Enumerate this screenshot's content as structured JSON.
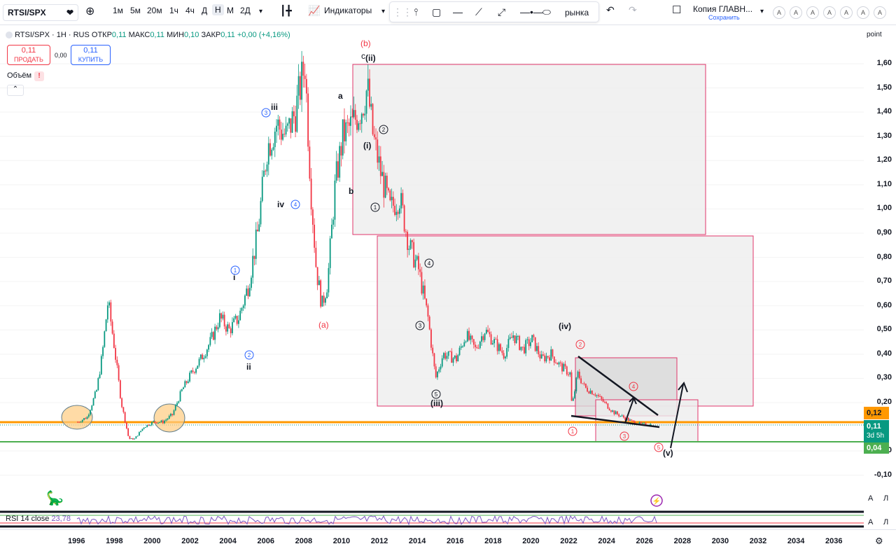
{
  "header": {
    "symbol": "RTSI/SPX",
    "intervals": [
      "1м",
      "5м",
      "20м",
      "1ч",
      "4ч",
      "Д",
      "Н",
      "М",
      "2Д"
    ],
    "active_interval": "Н",
    "indicators_label": "Индикаторы",
    "market_label": "рынка",
    "layout_name": "Копия ГЛАВН...",
    "layout_status": "Сохранить",
    "letters": [
      "A",
      "A",
      "A",
      "A",
      "A",
      "A",
      "A"
    ]
  },
  "legend": {
    "title": "RTSI/SPX · 1Н · RUS",
    "open_label": "ОТКР",
    "open_value": "0,11",
    "high_label": "МАКС",
    "high_value": "0,11",
    "low_label": "МИН",
    "low_value": "0,10",
    "close_label": "ЗАКР",
    "close_value": "0,11",
    "change": "+0,00 (+4,16%)"
  },
  "trade": {
    "sell_price": "0,11",
    "sell_label": "ПРОДАТЬ",
    "spread": "0,00",
    "buy_price": "0,11",
    "buy_label": "КУПИТЬ"
  },
  "volume_label": "Объём",
  "price_scale": {
    "mode_label": "point",
    "labels": [
      "1,60",
      "1,50",
      "1,40",
      "1,30",
      "1,20",
      "1,10",
      "1,00",
      "0,90",
      "0,80",
      "0,70",
      "0,60",
      "0,50",
      "0,40",
      "0,30",
      "0,20",
      "0,00",
      "-0,10"
    ],
    "tag_orange": "0,12",
    "tag_price": "0,11",
    "tag_countdown": "3d 5h",
    "tag_green": "0,04"
  },
  "rsi": {
    "label": "RSI 14 close",
    "value": "23,78"
  },
  "time_axis": {
    "years": [
      "1996",
      "1998",
      "2000",
      "2002",
      "2004",
      "2006",
      "2008",
      "2010",
      "2012",
      "2014",
      "2016",
      "2018",
      "2020",
      "2022",
      "2024",
      "2026",
      "2028",
      "2030",
      "2032",
      "2034",
      "2036"
    ]
  },
  "wave_labels": {
    "b_red": "(b)",
    "c": "c",
    "ii_top": "(ii)",
    "a": "a",
    "b": "b",
    "iii": "iii",
    "iv": "iv",
    "i": "i",
    "ii": "ii",
    "a_red": "(a)",
    "i_paren": "(i)",
    "iii_paren": "(iii)",
    "iv_paren": "(iv)",
    "v_paren": "(v)",
    "c1": "1",
    "c2": "2",
    "c3": "3",
    "c4": "4",
    "c5": "5"
  },
  "colors": {
    "up": "#089981",
    "down": "#f23645",
    "box_border": "#e0366b",
    "orange": "#ff9800",
    "green": "#4caf50",
    "rsi": "#7e57c2"
  },
  "chart_data": {
    "type": "candlestick",
    "title": "RTSI/SPX · 1Н · RUS",
    "xlabel": "",
    "ylabel": "",
    "ylim": [
      -0.14,
      1.68
    ],
    "xlim": [
      1994.7,
      2037
    ],
    "horizontal_levels": [
      0.118,
      0.04
    ],
    "series": [
      {
        "x": [
          1996.0,
          1996.5,
          1997.0,
          1997.3,
          1997.6,
          1997.9,
          1998.3,
          1998.7,
          1999.0,
          1999.5,
          2000.0,
          2000.5,
          2001.0,
          2001.5,
          2002.0,
          2002.5,
          2003.0,
          2003.5,
          2004.0,
          2004.5,
          2005.0,
          2005.5,
          2006.0,
          2006.5,
          2007.0,
          2007.5,
          2008.0,
          2008.3,
          2008.6,
          2008.9,
          2009.2,
          2009.6,
          2010.0,
          2010.5,
          2011.0,
          2011.3,
          2011.6,
          2012.0,
          2012.5,
          2013.0,
          2013.5,
          2014.0,
          2014.5,
          2014.9,
          2015.3,
          2016.0,
          2016.5,
          2017.0,
          2017.5,
          2018.0,
          2018.5,
          2019.0,
          2019.5,
          2020.0,
          2020.5,
          2021.0,
          2021.5,
          2022.0,
          2022.1,
          2022.4,
          2022.8,
          2023.3,
          2023.8,
          2024.3,
          2024.8,
          2025.3,
          2025.8,
          2026.3
        ],
        "values": [
          0.12,
          0.14,
          0.25,
          0.4,
          0.62,
          0.45,
          0.2,
          0.05,
          0.05,
          0.1,
          0.12,
          0.12,
          0.15,
          0.25,
          0.32,
          0.38,
          0.45,
          0.55,
          0.5,
          0.55,
          0.68,
          0.9,
          1.25,
          1.35,
          1.3,
          1.4,
          1.6,
          1.1,
          0.75,
          0.6,
          0.7,
          1.1,
          1.3,
          1.35,
          1.42,
          1.5,
          1.3,
          1.15,
          1.0,
          1.05,
          0.85,
          0.75,
          0.55,
          0.3,
          0.4,
          0.38,
          0.48,
          0.42,
          0.5,
          0.45,
          0.4,
          0.48,
          0.42,
          0.46,
          0.38,
          0.4,
          0.35,
          0.32,
          0.18,
          0.32,
          0.26,
          0.24,
          0.2,
          0.16,
          0.14,
          0.12,
          0.11,
          0.11
        ]
      }
    ],
    "rsi_value": 23.78
  }
}
